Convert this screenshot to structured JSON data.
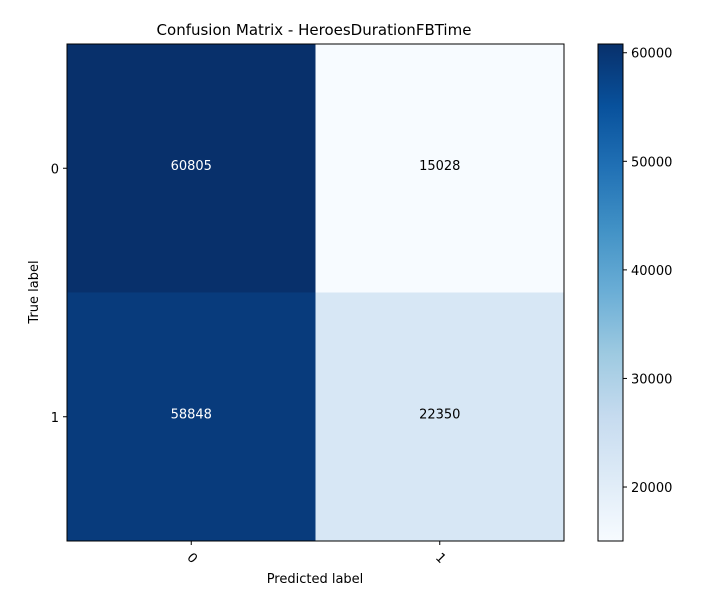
{
  "chart_data": {
    "type": "heatmap",
    "title": "Confusion Matrix - HeroesDurationFBTime",
    "xlabel": "Predicted label",
    "ylabel": "True label",
    "x_categories": [
      "0",
      "1"
    ],
    "y_categories": [
      "0",
      "1"
    ],
    "values": [
      [
        60805,
        15028
      ],
      [
        58848,
        22350
      ]
    ],
    "colormap": "Blues",
    "colorbar": {
      "range": [
        15028,
        60805
      ],
      "ticks": [
        "20000",
        "30000",
        "40000",
        "50000",
        "60000"
      ]
    },
    "colors": {
      "low": "#f7fbff",
      "high": "#08306b"
    }
  }
}
